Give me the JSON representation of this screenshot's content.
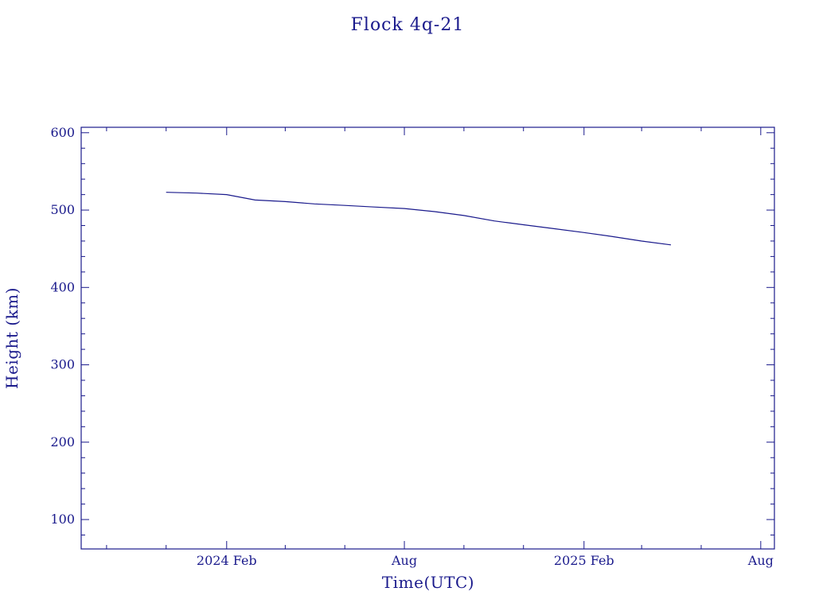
{
  "chart_data": {
    "type": "line",
    "title": "Flock 4q-21",
    "xlabel": "Time(UTC)",
    "ylabel": "Height (km)",
    "x_type": "date",
    "xlim": [
      "2023-09-05",
      "2025-08-15"
    ],
    "ylim": [
      62,
      607
    ],
    "yticks": [
      100,
      200,
      300,
      400,
      500,
      600
    ],
    "xticks": [
      {
        "date": "2024-02-01",
        "label": "2024 Feb"
      },
      {
        "date": "2024-08-01",
        "label": "Aug"
      },
      {
        "date": "2025-02-01",
        "label": "2025 Feb"
      },
      {
        "date": "2025-08-01",
        "label": "Aug"
      }
    ],
    "x_minor_ticks": [
      "2023-10-01",
      "2023-12-01",
      "2024-04-01",
      "2024-06-01",
      "2024-10-01",
      "2024-12-01",
      "2025-04-01",
      "2025-06-01"
    ],
    "y_minor_step": 20,
    "grid": false,
    "series": [
      {
        "color": "#1a1a8c",
        "x": [
          "2023-12-01",
          "2024-01-01",
          "2024-02-01",
          "2024-03-01",
          "2024-04-01",
          "2024-05-01",
          "2024-06-01",
          "2024-07-01",
          "2024-08-01",
          "2024-09-01",
          "2024-10-01",
          "2024-11-01",
          "2024-12-01",
          "2025-01-01",
          "2025-02-01",
          "2025-03-01",
          "2025-04-01",
          "2025-05-01"
        ],
        "y": [
          523,
          522,
          520,
          513,
          511,
          508,
          506,
          504,
          502,
          498,
          493,
          486,
          481,
          476,
          471,
          466,
          460,
          455
        ]
      }
    ]
  }
}
